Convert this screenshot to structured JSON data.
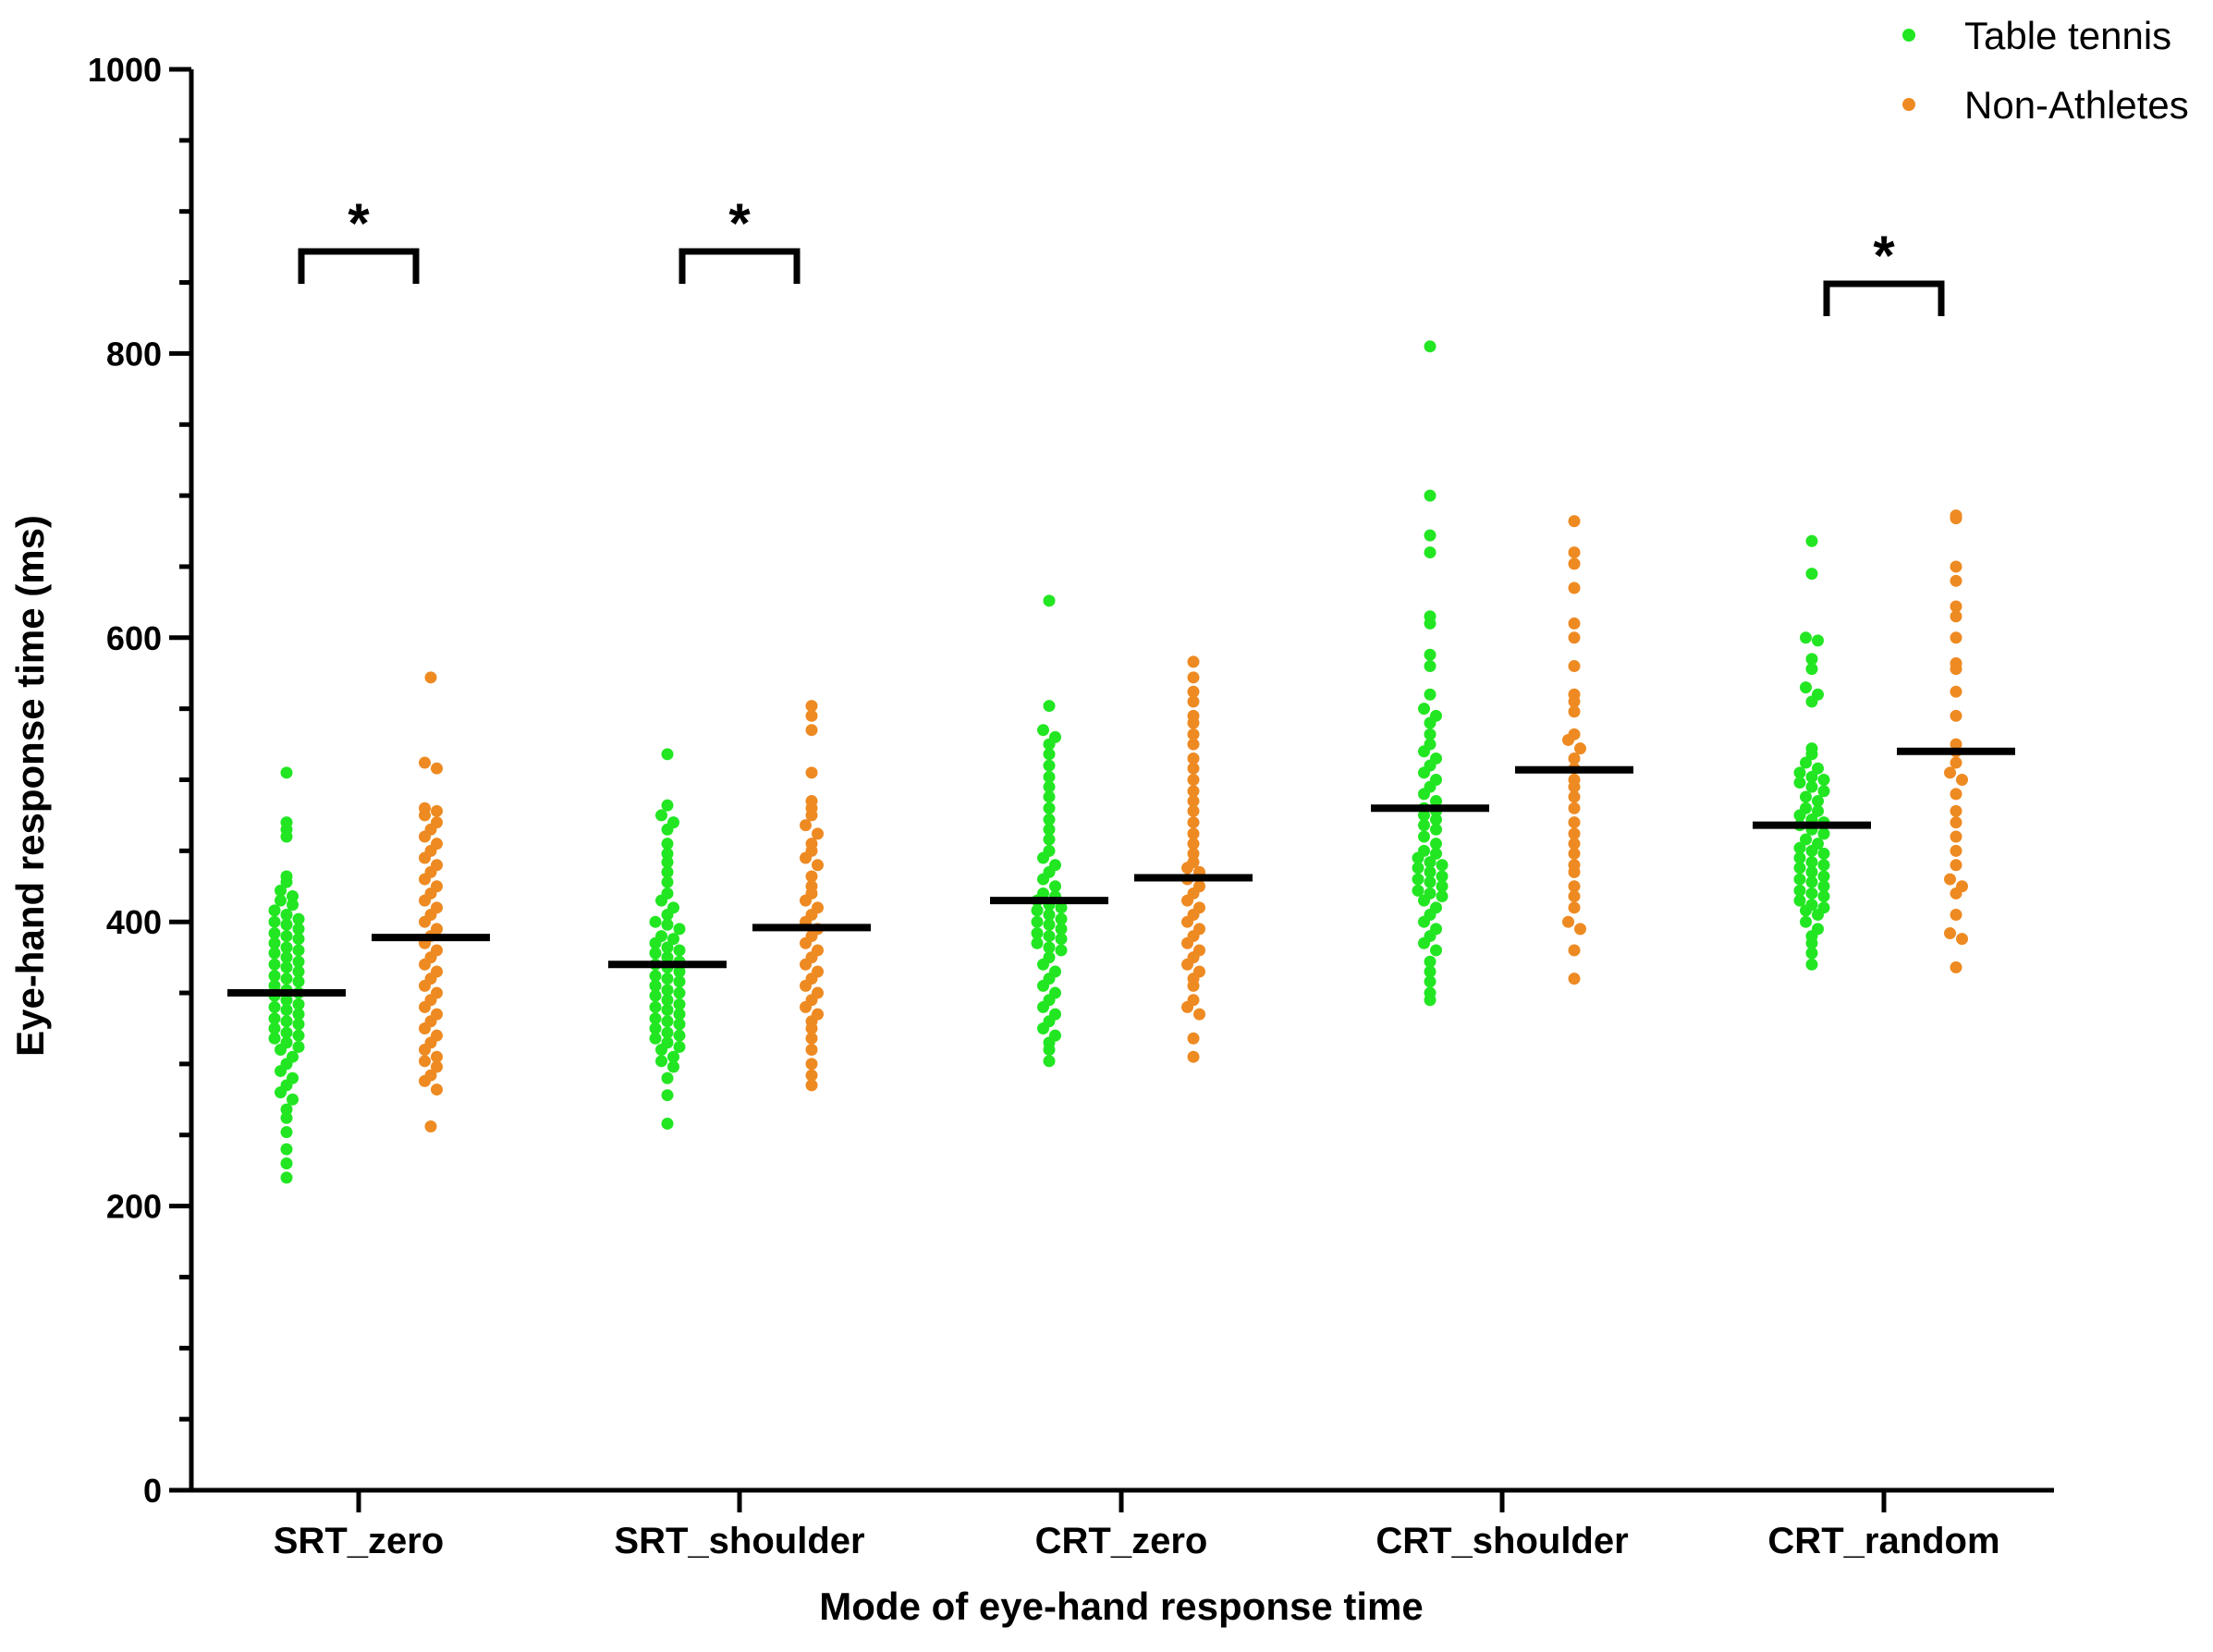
{
  "chart_data": {
    "type": "scatter",
    "subtype": "dot-plot-with-mean",
    "xlabel": "Mode of eye-hand response time",
    "ylabel": "Eye-hand response time (ms)",
    "ylim": [
      0,
      1000
    ],
    "yticks": [
      0,
      200,
      400,
      600,
      800,
      1000
    ],
    "ytick_labels": [
      "0",
      "200",
      "400",
      "600",
      "800",
      "1000"
    ],
    "categories": [
      "SRT_zero",
      "SRT_shoulder",
      "CRT_zero",
      "CRT_shoulder",
      "CRT_random"
    ],
    "legend_position": "top-right",
    "series": [
      {
        "name": "Table tennis",
        "color": "#22e622",
        "means": [
          350,
          370,
          415,
          480,
          468
        ],
        "groups": [
          [
            505,
            470,
            465,
            460,
            432,
            428,
            422,
            418,
            415,
            412,
            408,
            405,
            402,
            400,
            398,
            395,
            392,
            390,
            388,
            385,
            382,
            380,
            378,
            375,
            372,
            370,
            368,
            365,
            362,
            360,
            358,
            355,
            352,
            350,
            348,
            345,
            342,
            340,
            338,
            335,
            332,
            330,
            328,
            325,
            322,
            320,
            318,
            315,
            312,
            310,
            305,
            300,
            295,
            290,
            285,
            280,
            275,
            268,
            262,
            252,
            240,
            230,
            220
          ],
          [
            518,
            482,
            475,
            470,
            465,
            455,
            448,
            442,
            435,
            428,
            420,
            415,
            410,
            405,
            400,
            398,
            395,
            390,
            388,
            385,
            382,
            380,
            378,
            375,
            372,
            370,
            368,
            365,
            362,
            360,
            358,
            355,
            352,
            350,
            348,
            345,
            342,
            340,
            338,
            335,
            332,
            330,
            328,
            325,
            322,
            320,
            318,
            315,
            312,
            310,
            305,
            302,
            298,
            290,
            278,
            258
          ],
          [
            626,
            552,
            535,
            530,
            525,
            518,
            510,
            502,
            495,
            488,
            480,
            472,
            465,
            458,
            450,
            445,
            440,
            435,
            430,
            425,
            420,
            418,
            415,
            412,
            410,
            408,
            405,
            402,
            400,
            398,
            395,
            392,
            390,
            388,
            385,
            382,
            380,
            375,
            370,
            365,
            360,
            355,
            350,
            345,
            340,
            335,
            330,
            325,
            320,
            315,
            310,
            302
          ],
          [
            805,
            700,
            672,
            660,
            615,
            610,
            588,
            580,
            560,
            550,
            545,
            540,
            532,
            525,
            520,
            515,
            510,
            505,
            500,
            495,
            490,
            485,
            480,
            478,
            475,
            472,
            468,
            465,
            460,
            455,
            450,
            448,
            445,
            442,
            440,
            438,
            435,
            432,
            430,
            428,
            425,
            422,
            420,
            418,
            415,
            410,
            405,
            400,
            395,
            390,
            385,
            380,
            372,
            365,
            358,
            350,
            345
          ],
          [
            668,
            645,
            600,
            598,
            585,
            578,
            565,
            560,
            555,
            522,
            518,
            512,
            508,
            505,
            502,
            500,
            498,
            495,
            492,
            488,
            485,
            480,
            478,
            475,
            472,
            470,
            468,
            465,
            462,
            458,
            455,
            452,
            450,
            448,
            445,
            442,
            440,
            438,
            435,
            432,
            430,
            428,
            425,
            422,
            420,
            418,
            415,
            412,
            410,
            408,
            405,
            400,
            395,
            390,
            385,
            378,
            370
          ]
        ]
      },
      {
        "name": "Non-Athletes",
        "color": "#ee8a22",
        "means": [
          389,
          396,
          431,
          507,
          520
        ],
        "groups": [
          [
            572,
            512,
            508,
            480,
            478,
            475,
            470,
            465,
            460,
            455,
            450,
            445,
            440,
            435,
            430,
            425,
            420,
            415,
            410,
            405,
            400,
            395,
            390,
            385,
            380,
            375,
            370,
            365,
            360,
            355,
            350,
            345,
            340,
            335,
            330,
            325,
            320,
            315,
            310,
            305,
            302,
            298,
            292,
            288,
            282,
            256
          ],
          [
            552,
            545,
            535,
            505,
            485,
            480,
            475,
            468,
            462,
            455,
            450,
            445,
            440,
            432,
            425,
            420,
            415,
            410,
            405,
            400,
            395,
            390,
            385,
            380,
            375,
            370,
            365,
            360,
            355,
            350,
            345,
            340,
            335,
            330,
            325,
            318,
            310,
            300,
            292,
            285
          ],
          [
            583,
            572,
            562,
            555,
            545,
            540,
            532,
            525,
            515,
            508,
            500,
            492,
            485,
            478,
            470,
            462,
            455,
            448,
            442,
            438,
            435,
            430,
            425,
            420,
            415,
            410,
            405,
            400,
            395,
            390,
            385,
            380,
            375,
            370,
            365,
            360,
            355,
            345,
            340,
            335,
            318,
            305
          ],
          [
            682,
            660,
            652,
            635,
            610,
            600,
            580,
            560,
            555,
            548,
            532,
            528,
            522,
            515,
            508,
            500,
            495,
            488,
            480,
            470,
            462,
            455,
            448,
            440,
            435,
            425,
            418,
            410,
            400,
            395,
            380,
            360
          ],
          [
            686,
            684,
            650,
            640,
            622,
            615,
            600,
            582,
            578,
            562,
            545,
            525,
            520,
            512,
            505,
            500,
            490,
            478,
            470,
            460,
            450,
            440,
            430,
            425,
            420,
            405,
            392,
            388,
            368
          ]
        ]
      }
    ],
    "significance": [
      {
        "category": "SRT_zero",
        "label": "*"
      },
      {
        "category": "SRT_shoulder",
        "label": "*"
      },
      {
        "category": "CRT_random",
        "label": "*"
      }
    ]
  }
}
